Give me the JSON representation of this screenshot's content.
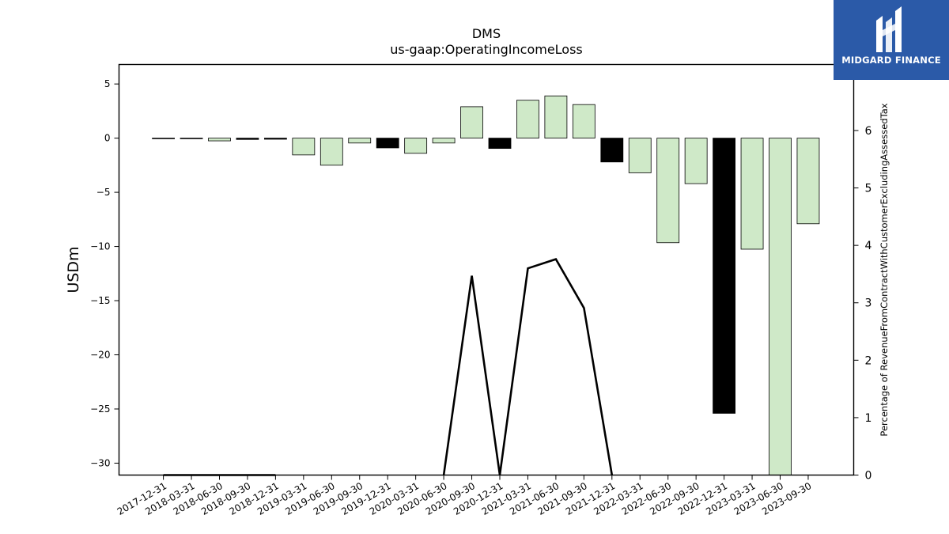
{
  "brand": {
    "name": "MIDGARD FINANCE",
    "bg_color": "#2b5aa8"
  },
  "chart_data": {
    "type": "bar",
    "title": "DMS",
    "subtitle": "us-gaap:OperatingIncomeLoss",
    "ylabel": "USDm",
    "y2label": "Percentage of RevenueFromContractWithCustomerExcludingAssessedTax",
    "ylim": [
      -31.1,
      6.8
    ],
    "y2lim": [
      0,
      7.15
    ],
    "yticks": [
      5,
      0,
      -5,
      -10,
      -15,
      -20,
      -25,
      -30
    ],
    "y2ticks": [
      0,
      1,
      2,
      3,
      4,
      5,
      6
    ],
    "categories": [
      "2017-12-31",
      "2018-03-31",
      "2018-06-30",
      "2018-09-30",
      "2018-12-31",
      "2019-03-31",
      "2019-06-30",
      "2019-09-30",
      "2019-12-31",
      "2020-03-31",
      "2020-06-30",
      "2020-09-30",
      "2020-12-31",
      "2021-03-31",
      "2021-06-30",
      "2021-09-30",
      "2021-12-31",
      "2022-03-31",
      "2022-06-30",
      "2022-09-30",
      "2022-12-31",
      "2023-03-31",
      "2023-06-30",
      "2023-09-30"
    ],
    "series": [
      {
        "kind": "bar",
        "axis": "left",
        "values": [
          -0.05,
          -0.05,
          -0.25,
          -0.12,
          -0.1,
          -1.55,
          -2.5,
          -0.45,
          -0.9,
          -1.4,
          -0.45,
          2.9,
          -0.95,
          3.5,
          3.9,
          3.1,
          -2.2,
          -3.2,
          -9.65,
          -4.2,
          -25.4,
          -10.25,
          -31.1,
          -7.9
        ],
        "highlight": [
          false,
          false,
          false,
          true,
          true,
          false,
          false,
          false,
          true,
          false,
          false,
          false,
          true,
          false,
          false,
          false,
          true,
          false,
          false,
          false,
          true,
          false,
          false,
          false
        ]
      },
      {
        "kind": "line",
        "axis": "right",
        "values": [
          0,
          0,
          0,
          0,
          0,
          null,
          null,
          null,
          null,
          null,
          0,
          3.47,
          0,
          3.6,
          3.76,
          2.91,
          0,
          null,
          null,
          null,
          null,
          null,
          null,
          null
        ]
      }
    ],
    "colors": {
      "bar": "#cfe9c8",
      "bar_highlight": "#000000",
      "edge": "#000000",
      "line": "#000000"
    },
    "grid": false,
    "legend": "none"
  }
}
